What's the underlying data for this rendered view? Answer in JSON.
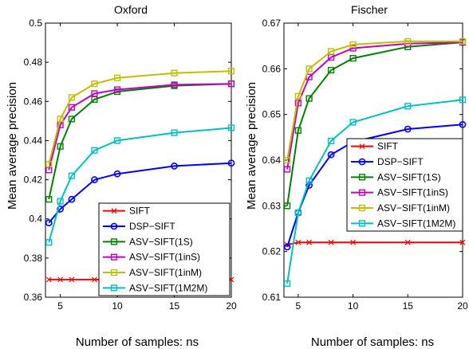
{
  "chart_data": [
    {
      "type": "line",
      "title": "Oxford",
      "xlabel": "Number of samples: ns",
      "ylabel": "Mean average precision",
      "xlim": [
        3.7,
        20
      ],
      "ylim": [
        0.36,
        0.5
      ],
      "xticks": [
        5,
        10,
        15,
        20
      ],
      "yticks": [
        0.36,
        0.38,
        0.4,
        0.42,
        0.44,
        0.46,
        0.48,
        0.5
      ],
      "ytick_labels": [
        "0.36",
        "0.38",
        "0.4",
        "0.42",
        "0.44",
        "0.46",
        "0.48",
        "0.5"
      ],
      "legend_position": "bottom-right",
      "x": [
        4,
        5,
        6,
        8,
        10,
        15,
        20
      ],
      "series": [
        {
          "name": "SIFT",
          "color": "#ff0000",
          "marker": "x",
          "values": [
            0.369,
            0.369,
            0.369,
            0.369,
            0.369,
            0.369,
            0.369
          ]
        },
        {
          "name": "DSP−SIFT",
          "color": "#0000ff",
          "marker": "o",
          "values": [
            0.398,
            0.405,
            0.41,
            0.42,
            0.423,
            0.427,
            0.4285
          ]
        },
        {
          "name": "ASV−SIFT(1S)",
          "color": "#008000",
          "marker": "s",
          "values": [
            0.41,
            0.437,
            0.451,
            0.461,
            0.465,
            0.468,
            0.469
          ]
        },
        {
          "name": "ASV−SIFT(1inS)",
          "color": "#c000c0",
          "marker": "s",
          "values": [
            0.425,
            0.448,
            0.457,
            0.464,
            0.466,
            0.4685,
            0.469
          ]
        },
        {
          "name": "ASV−SIFT(1inM)",
          "color": "#bfbf00",
          "marker": "s",
          "values": [
            0.428,
            0.451,
            0.462,
            0.469,
            0.472,
            0.4745,
            0.4755
          ]
        },
        {
          "name": "ASV−SIFT(1M2M)",
          "color": "#00bfbf",
          "marker": "s",
          "values": [
            0.388,
            0.409,
            0.422,
            0.435,
            0.44,
            0.444,
            0.4465
          ]
        }
      ]
    },
    {
      "type": "line",
      "title": "Fischer",
      "xlabel": "Number of samples: ns",
      "ylabel": "Mean average precision",
      "xlim": [
        3.7,
        20
      ],
      "ylim": [
        0.61,
        0.67
      ],
      "xticks": [
        5,
        10,
        15,
        20
      ],
      "yticks": [
        0.61,
        0.62,
        0.63,
        0.64,
        0.65,
        0.66,
        0.67
      ],
      "ytick_labels": [
        "0.61",
        "0.62",
        "0.63",
        "0.64",
        "0.65",
        "0.66",
        "0.67"
      ],
      "legend_position": "center-right",
      "x": [
        4,
        5,
        6,
        8,
        10,
        15,
        20
      ],
      "series": [
        {
          "name": "SIFT",
          "color": "#ff0000",
          "marker": "x",
          "values": [
            0.6215,
            0.622,
            0.622,
            0.622,
            0.622,
            0.622,
            0.622
          ]
        },
        {
          "name": "DSP−SIFT",
          "color": "#0000ff",
          "marker": "o",
          "values": [
            0.621,
            0.6285,
            0.6345,
            0.6412,
            0.644,
            0.6468,
            0.6478
          ]
        },
        {
          "name": "ASV−SIFT(1S)",
          "color": "#008000",
          "marker": "s",
          "values": [
            0.63,
            0.6465,
            0.6535,
            0.6597,
            0.6623,
            0.6648,
            0.6658
          ]
        },
        {
          "name": "ASV−SIFT(1inS)",
          "color": "#c000c0",
          "marker": "s",
          "values": [
            0.638,
            0.6525,
            0.6582,
            0.6625,
            0.6645,
            0.6655,
            0.6658
          ]
        },
        {
          "name": "ASV−SIFT(1inM)",
          "color": "#bfbf00",
          "marker": "s",
          "values": [
            0.64,
            0.654,
            0.66,
            0.6638,
            0.6653,
            0.666,
            0.666
          ]
        },
        {
          "name": "ASV−SIFT(1M2M)",
          "color": "#00bfbf",
          "marker": "s",
          "values": [
            0.613,
            0.6285,
            0.6355,
            0.6442,
            0.6483,
            0.6518,
            0.6532
          ]
        }
      ]
    }
  ]
}
